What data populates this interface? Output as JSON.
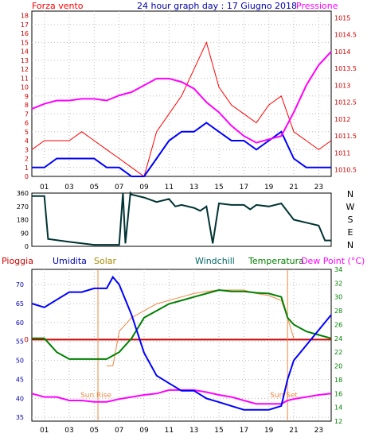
{
  "panel1": {
    "title": "24 hour graph day : 17 Giugno 2018",
    "left_label": "Forza vento",
    "right_label": "Pressione",
    "left_ticks": [
      0,
      1,
      2,
      3,
      4,
      5,
      6,
      7,
      8,
      9,
      10,
      11,
      12,
      13,
      14,
      15,
      16,
      17,
      18
    ],
    "right_ticks": [
      "1010.5",
      "1011",
      "1011.5",
      "1012",
      "1012.5",
      "1013",
      "1013.5",
      "1014",
      "1014.5",
      "1015"
    ]
  },
  "panel2": {
    "left_ticks": [
      0,
      90,
      180,
      270,
      360
    ],
    "compass": [
      "N",
      "W",
      "S",
      "E",
      "N"
    ]
  },
  "panel3": {
    "labels": {
      "rain": "Pioggia",
      "humidity": "Umidita",
      "solar": "Solar",
      "windchill": "Windchill",
      "temperature": "Temperatura",
      "dewpoint": "Dew Point (°C)"
    },
    "left_ticks": [
      35,
      40,
      45,
      50,
      55,
      60,
      65,
      70
    ],
    "rain_tick": "0",
    "right_ticks": [
      12,
      14,
      16,
      18,
      20,
      22,
      24,
      26,
      28,
      30,
      32,
      34
    ],
    "sunrise_label": "Sun Rise",
    "sunset_label": "Sun Set"
  },
  "x_ticks": [
    "01",
    "03",
    "05",
    "07",
    "09",
    "11",
    "13",
    "15",
    "17",
    "19",
    "21",
    "23"
  ],
  "colors": {
    "wind_gust": "#ff0000",
    "wind_avg": "#0000ff",
    "pressure": "#ff00ff",
    "direction": "#003333",
    "humidity": "#0000ff",
    "solar": "#ee8844",
    "temperature": "#008000",
    "dewpoint": "#ff00ff",
    "rain": "#cc0000",
    "sun_markers": "#ee8844"
  },
  "chart_data": [
    {
      "type": "line",
      "panel": "wind-pressure",
      "x": [
        0,
        1,
        2,
        3,
        4,
        5,
        6,
        7,
        8,
        9,
        10,
        11,
        12,
        13,
        14,
        15,
        16,
        17,
        18,
        19,
        20,
        21,
        22,
        23,
        24
      ],
      "series": [
        {
          "key": "gust",
          "values": [
            3,
            4,
            4,
            4,
            5,
            4,
            3,
            2,
            1,
            0,
            5,
            7,
            9,
            12,
            15,
            10,
            8,
            7,
            6,
            8,
            9,
            5,
            4,
            3,
            4
          ]
        },
        {
          "key": "avg",
          "values": [
            1,
            1,
            2,
            2,
            2,
            2,
            1,
            1,
            0,
            0,
            2,
            4,
            5,
            5,
            6,
            5,
            4,
            4,
            3,
            4,
            5,
            2,
            1,
            1,
            1
          ]
        },
        {
          "key": "pressure",
          "values": [
            1012.3,
            1012.45,
            1012.55,
            1012.55,
            1012.6,
            1012.6,
            1012.55,
            1012.7,
            1012.8,
            1013.0,
            1013.2,
            1013.2,
            1013.1,
            1012.9,
            1012.5,
            1012.2,
            1011.8,
            1011.5,
            1011.3,
            1011.4,
            1011.5,
            1012.2,
            1013.0,
            1013.6,
            1014.0
          ]
        }
      ],
      "ylim_left": [
        0,
        18.5
      ],
      "ylim_right": [
        1010.3,
        1015.2
      ]
    },
    {
      "type": "line",
      "panel": "wind-direction",
      "x": [
        0,
        1,
        1.3,
        3,
        5,
        6,
        7,
        7.3,
        7.5,
        7.9,
        8,
        9,
        10,
        11,
        11.5,
        12,
        13,
        13.5,
        14,
        14.5,
        15,
        16,
        17,
        17.5,
        18,
        19,
        20,
        21,
        22,
        23,
        23.5,
        24
      ],
      "values": [
        340,
        340,
        50,
        30,
        10,
        10,
        10,
        360,
        20,
        360,
        350,
        330,
        300,
        320,
        270,
        280,
        260,
        240,
        270,
        20,
        290,
        280,
        280,
        250,
        280,
        270,
        290,
        180,
        160,
        140,
        40,
        40
      ],
      "ylim": [
        0,
        360
      ]
    },
    {
      "type": "line",
      "panel": "temperature-humidity",
      "x": [
        0,
        1,
        2,
        3,
        4,
        5,
        6,
        6.5,
        7,
        8,
        9,
        10,
        11,
        12,
        13,
        14,
        15,
        16,
        17,
        18,
        19,
        20,
        20.5,
        21,
        22,
        23,
        24
      ],
      "series": [
        {
          "key": "humidity",
          "axis": "left",
          "values": [
            65,
            64,
            66,
            68,
            68,
            69,
            69,
            72,
            70,
            62,
            52,
            46,
            44,
            42,
            42,
            40,
            39,
            38,
            37,
            37,
            37,
            38,
            45,
            50,
            54,
            58,
            62
          ]
        },
        {
          "key": "temperature",
          "axis": "right",
          "values": [
            24,
            24,
            22,
            21,
            21,
            21,
            21,
            21.5,
            22,
            24,
            27,
            28,
            29,
            29.5,
            30,
            30.5,
            31,
            30.8,
            30.8,
            30.6,
            30.5,
            30,
            27,
            26,
            25,
            24.5,
            24
          ]
        },
        {
          "key": "dewpoint",
          "axis": "right",
          "values": [
            16,
            15.5,
            15.5,
            15,
            15,
            14.8,
            14.8,
            15,
            15.2,
            15.5,
            15.8,
            16,
            16.5,
            16.5,
            16.5,
            16.2,
            15.8,
            15.5,
            15,
            14.5,
            14.5,
            14.5,
            15,
            15.2,
            15.5,
            15.8,
            16
          ]
        },
        {
          "key": "solar",
          "axis": "right",
          "values": [
            null,
            null,
            null,
            null,
            null,
            null,
            20,
            20,
            25,
            27,
            28,
            29,
            29.5,
            30,
            30.5,
            30.8,
            31,
            31,
            31,
            30.5,
            30.2,
            29.5,
            27,
            24,
            null,
            null,
            null
          ]
        }
      ],
      "rain": 0,
      "sunrise": 5.3,
      "sunset": 20.5,
      "ylim_left": [
        34,
        74
      ],
      "ylim_right": [
        12,
        34
      ]
    }
  ]
}
